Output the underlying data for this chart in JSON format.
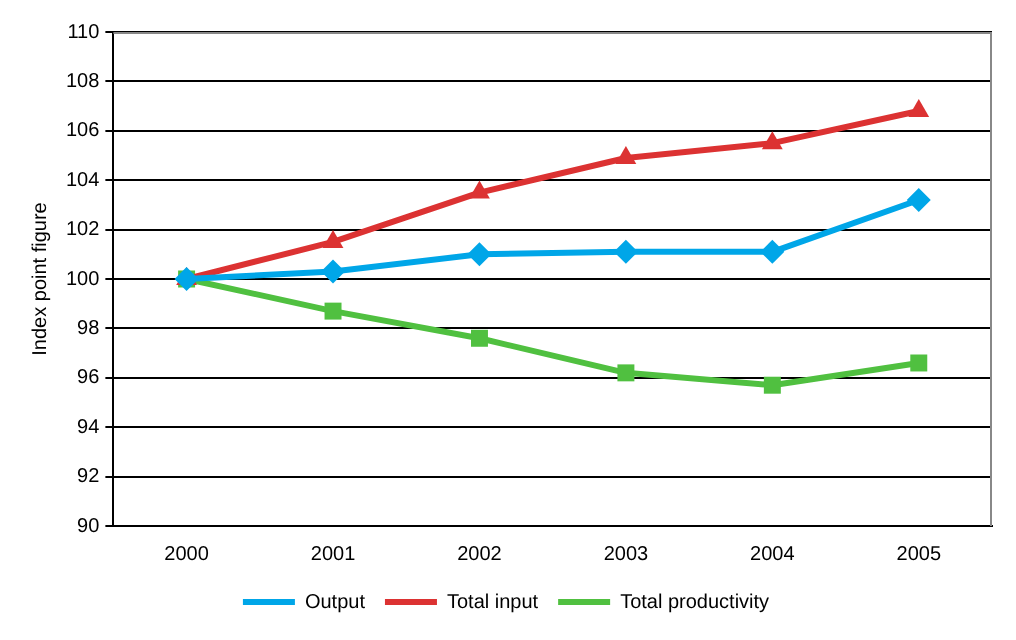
{
  "chart_data": {
    "type": "line",
    "ylabel": "Index point figure",
    "categories": [
      "2000",
      "2001",
      "2002",
      "2003",
      "2004",
      "2005"
    ],
    "series": [
      {
        "name": "Output",
        "color": "#00a6e8",
        "marker": "diamond",
        "values": [
          100,
          100.3,
          101.0,
          101.1,
          101.1,
          103.2
        ]
      },
      {
        "name": "Total input",
        "color": "#dc3232",
        "marker": "triangle",
        "values": [
          100,
          101.5,
          103.5,
          104.9,
          105.5,
          106.8
        ]
      },
      {
        "name": "Total productivity",
        "color": "#50c040",
        "marker": "square",
        "values": [
          100,
          98.7,
          97.6,
          96.2,
          95.7,
          96.6
        ]
      }
    ],
    "ylim": [
      90,
      110
    ],
    "yticks": [
      90,
      92,
      94,
      96,
      98,
      100,
      102,
      104,
      106,
      108,
      110
    ],
    "grid": "y",
    "legend": "bottom",
    "line_style": "solid"
  }
}
